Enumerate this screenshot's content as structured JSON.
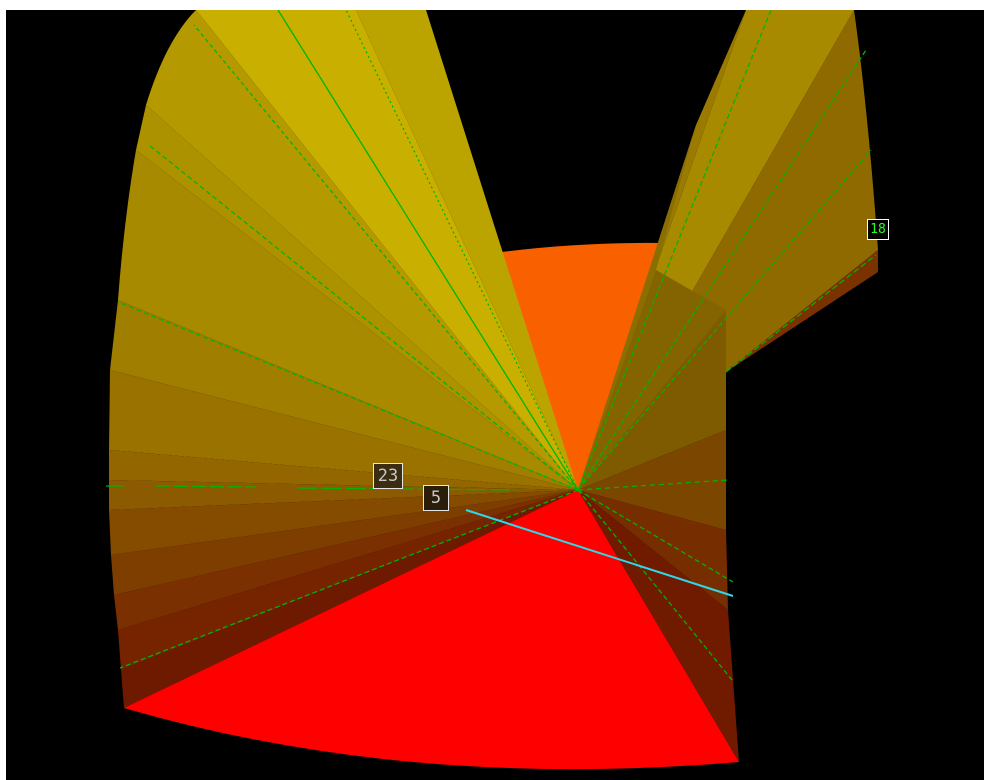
{
  "viewer": {
    "background_color": "#000000",
    "labels": [
      {
        "id": "23",
        "text": "23",
        "text_color": "#c8c8c8",
        "box_color": "#3a2d12",
        "border_color": "#e6e6e6"
      },
      {
        "id": "5",
        "text": "5",
        "text_color": "#c8c8c8",
        "box_color": "#2a1e0a",
        "border_color": "#e6e6e6"
      },
      {
        "id": "18",
        "text": "18",
        "text_color": "#22ff22",
        "box_color": "#000000",
        "border_color": "#ffffff"
      }
    ]
  },
  "colors": {
    "orange_sector": "#f86000",
    "red_sector": "#ff0000",
    "yellow_light": "#c9b000",
    "yellow_mid": "#a88a00",
    "brown_dark": "#7a1a00",
    "guide_line": "#00b400",
    "cyan_line": "#2fd8e8"
  }
}
